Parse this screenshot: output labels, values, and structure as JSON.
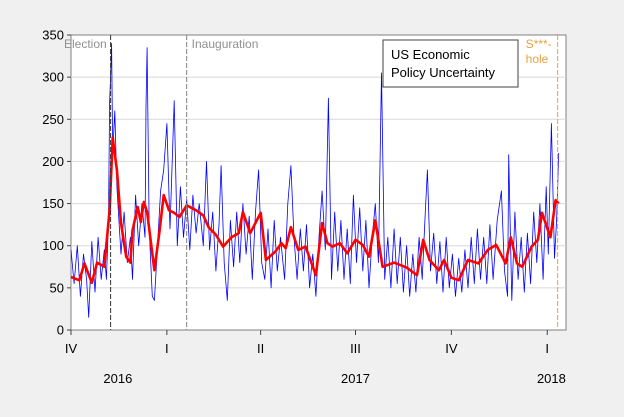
{
  "chart_data": {
    "type": "line",
    "title": "",
    "legend_text": [
      "US Economic",
      "Policy Uncertainty"
    ],
    "legend_placement": "top-right",
    "xlabel": "",
    "ylabel": "",
    "ylim": [
      0,
      350
    ],
    "yticks": [
      0,
      50,
      100,
      150,
      200,
      250,
      300,
      350
    ],
    "grid": true,
    "xlim": [
      "2016-10-01",
      "2018-01-19"
    ],
    "quarter_ticks": [
      {
        "date": "2016-10-01",
        "label": "IV"
      },
      {
        "date": "2017-01-01",
        "label": "I"
      },
      {
        "date": "2017-04-01",
        "label": "II"
      },
      {
        "date": "2017-07-01",
        "label": "III"
      },
      {
        "date": "2017-10-01",
        "label": "IV"
      },
      {
        "date": "2018-01-01",
        "label": "I"
      }
    ],
    "year_labels": [
      {
        "date": "2016-11-15",
        "label": "2016"
      },
      {
        "date": "2017-07-01",
        "label": "2017"
      },
      {
        "date": "2018-01-05",
        "label": "2018"
      }
    ],
    "annotations": [
      {
        "date": "2016-11-08",
        "label": "Election",
        "color": "#333333"
      },
      {
        "date": "2017-01-20",
        "label": "Inauguration",
        "color": "#808080"
      },
      {
        "date": "2018-01-11",
        "label": "S***-",
        "label2": "hole",
        "color": "#e8a040"
      }
    ],
    "colors": {
      "daily": "#0000ff",
      "moving_average": "#ff0000",
      "grid": "#d8d8d8",
      "annotation_text": "#909090"
    },
    "series": [
      {
        "key": "daily",
        "points": [
          [
            "2016-10-01",
            95
          ],
          [
            "2016-10-04",
            55
          ],
          [
            "2016-10-07",
            100
          ],
          [
            "2016-10-10",
            40
          ],
          [
            "2016-10-13",
            90
          ],
          [
            "2016-10-16",
            60
          ],
          [
            "2016-10-18",
            15
          ],
          [
            "2016-10-21",
            105
          ],
          [
            "2016-10-24",
            45
          ],
          [
            "2016-10-27",
            110
          ],
          [
            "2016-10-30",
            60
          ],
          [
            "2016-11-02",
            95
          ],
          [
            "2016-11-04",
            60
          ],
          [
            "2016-11-06",
            130
          ],
          [
            "2016-11-07",
            270
          ],
          [
            "2016-11-08",
            300
          ],
          [
            "2016-11-09",
            340
          ],
          [
            "2016-11-10",
            210
          ],
          [
            "2016-11-12",
            260
          ],
          [
            "2016-11-14",
            170
          ],
          [
            "2016-11-16",
            130
          ],
          [
            "2016-11-18",
            90
          ],
          [
            "2016-11-21",
            140
          ],
          [
            "2016-11-24",
            80
          ],
          [
            "2016-11-27",
            110
          ],
          [
            "2016-11-29",
            60
          ],
          [
            "2016-12-02",
            160
          ],
          [
            "2016-12-05",
            100
          ],
          [
            "2016-12-08",
            150
          ],
          [
            "2016-12-11",
            110
          ],
          [
            "2016-12-12",
            265
          ],
          [
            "2016-12-13",
            335
          ],
          [
            "2016-12-15",
            120
          ],
          [
            "2016-12-18",
            40
          ],
          [
            "2016-12-20",
            35
          ],
          [
            "2016-12-23",
            100
          ],
          [
            "2016-12-26",
            165
          ],
          [
            "2016-12-29",
            190
          ],
          [
            "2017-01-01",
            245
          ],
          [
            "2017-01-04",
            120
          ],
          [
            "2017-01-08",
            272
          ],
          [
            "2017-01-11",
            100
          ],
          [
            "2017-01-14",
            170
          ],
          [
            "2017-01-17",
            110
          ],
          [
            "2017-01-20",
            155
          ],
          [
            "2017-01-23",
            95
          ],
          [
            "2017-01-26",
            160
          ],
          [
            "2017-01-29",
            115
          ],
          [
            "2017-02-01",
            150
          ],
          [
            "2017-02-05",
            100
          ],
          [
            "2017-02-08",
            200
          ],
          [
            "2017-02-11",
            95
          ],
          [
            "2017-02-14",
            140
          ],
          [
            "2017-02-17",
            70
          ],
          [
            "2017-02-20",
            125
          ],
          [
            "2017-02-22",
            195
          ],
          [
            "2017-02-25",
            80
          ],
          [
            "2017-02-28",
            35
          ],
          [
            "2017-03-03",
            130
          ],
          [
            "2017-03-06",
            75
          ],
          [
            "2017-03-09",
            140
          ],
          [
            "2017-03-12",
            80
          ],
          [
            "2017-03-15",
            150
          ],
          [
            "2017-03-18",
            90
          ],
          [
            "2017-03-21",
            135
          ],
          [
            "2017-03-24",
            60
          ],
          [
            "2017-03-27",
            140
          ],
          [
            "2017-03-30",
            190
          ],
          [
            "2017-04-02",
            80
          ],
          [
            "2017-04-05",
            60
          ],
          [
            "2017-04-08",
            120
          ],
          [
            "2017-04-11",
            50
          ],
          [
            "2017-04-14",
            130
          ],
          [
            "2017-04-17",
            70
          ],
          [
            "2017-04-20",
            110
          ],
          [
            "2017-04-24",
            60
          ],
          [
            "2017-04-27",
            150
          ],
          [
            "2017-04-30",
            195
          ],
          [
            "2017-05-03",
            110
          ],
          [
            "2017-05-06",
            60
          ],
          [
            "2017-05-09",
            120
          ],
          [
            "2017-05-12",
            70
          ],
          [
            "2017-05-15",
            125
          ],
          [
            "2017-05-18",
            50
          ],
          [
            "2017-05-21",
            90
          ],
          [
            "2017-05-24",
            40
          ],
          [
            "2017-05-27",
            110
          ],
          [
            "2017-05-30",
            165
          ],
          [
            "2017-06-02",
            95
          ],
          [
            "2017-06-05",
            275
          ],
          [
            "2017-06-08",
            60
          ],
          [
            "2017-06-11",
            140
          ],
          [
            "2017-06-14",
            70
          ],
          [
            "2017-06-17",
            130
          ],
          [
            "2017-06-20",
            60
          ],
          [
            "2017-06-23",
            120
          ],
          [
            "2017-06-26",
            55
          ],
          [
            "2017-06-29",
            160
          ],
          [
            "2017-07-02",
            80
          ],
          [
            "2017-07-05",
            145
          ],
          [
            "2017-07-08",
            70
          ],
          [
            "2017-07-11",
            130
          ],
          [
            "2017-07-14",
            50
          ],
          [
            "2017-07-17",
            110
          ],
          [
            "2017-07-20",
            150
          ],
          [
            "2017-07-23",
            80
          ],
          [
            "2017-07-26",
            305
          ],
          [
            "2017-07-29",
            60
          ],
          [
            "2017-08-01",
            110
          ],
          [
            "2017-08-04",
            50
          ],
          [
            "2017-08-07",
            120
          ],
          [
            "2017-08-10",
            55
          ],
          [
            "2017-08-13",
            110
          ],
          [
            "2017-08-16",
            45
          ],
          [
            "2017-08-19",
            100
          ],
          [
            "2017-08-22",
            40
          ],
          [
            "2017-08-25",
            90
          ],
          [
            "2017-08-28",
            45
          ],
          [
            "2017-08-31",
            110
          ],
          [
            "2017-09-03",
            60
          ],
          [
            "2017-09-06",
            140
          ],
          [
            "2017-09-08",
            190
          ],
          [
            "2017-09-11",
            70
          ],
          [
            "2017-09-14",
            115
          ],
          [
            "2017-09-17",
            55
          ],
          [
            "2017-09-20",
            105
          ],
          [
            "2017-09-23",
            45
          ],
          [
            "2017-09-26",
            110
          ],
          [
            "2017-09-29",
            50
          ],
          [
            "2017-10-02",
            90
          ],
          [
            "2017-10-05",
            40
          ],
          [
            "2017-10-08",
            85
          ],
          [
            "2017-10-11",
            45
          ],
          [
            "2017-10-14",
            95
          ],
          [
            "2017-10-17",
            50
          ],
          [
            "2017-10-20",
            110
          ],
          [
            "2017-10-23",
            55
          ],
          [
            "2017-10-26",
            120
          ],
          [
            "2017-10-29",
            60
          ],
          [
            "2017-11-01",
            110
          ],
          [
            "2017-11-04",
            55
          ],
          [
            "2017-11-07",
            125
          ],
          [
            "2017-11-10",
            60
          ],
          [
            "2017-11-14",
            130
          ],
          [
            "2017-11-18",
            165
          ],
          [
            "2017-11-21",
            70
          ],
          [
            "2017-11-24",
            40
          ],
          [
            "2017-11-25",
            208
          ],
          [
            "2017-11-28",
            35
          ],
          [
            "2017-12-01",
            140
          ],
          [
            "2017-12-04",
            60
          ],
          [
            "2017-12-07",
            110
          ],
          [
            "2017-12-10",
            45
          ],
          [
            "2017-12-13",
            115
          ],
          [
            "2017-12-16",
            55
          ],
          [
            "2017-12-19",
            140
          ],
          [
            "2017-12-22",
            80
          ],
          [
            "2017-12-25",
            150
          ],
          [
            "2017-12-28",
            60
          ],
          [
            "2017-12-31",
            170
          ],
          [
            "2018-01-02",
            90
          ],
          [
            "2018-01-05",
            245
          ],
          [
            "2018-01-08",
            85
          ],
          [
            "2018-01-10",
            130
          ],
          [
            "2018-01-12",
            210
          ]
        ]
      },
      {
        "key": "moving_average",
        "points": [
          [
            "2016-10-01",
            63
          ],
          [
            "2016-10-09",
            59
          ],
          [
            "2016-10-14",
            79
          ],
          [
            "2016-10-21",
            56
          ],
          [
            "2016-10-26",
            80
          ],
          [
            "2016-11-02",
            75
          ],
          [
            "2016-11-07",
            142
          ],
          [
            "2016-11-10",
            228
          ],
          [
            "2016-11-14",
            190
          ],
          [
            "2016-11-18",
            127
          ],
          [
            "2016-11-23",
            87
          ],
          [
            "2016-11-27",
            80
          ],
          [
            "2016-11-29",
            118
          ],
          [
            "2016-12-04",
            146
          ],
          [
            "2016-12-07",
            128
          ],
          [
            "2016-12-10",
            152
          ],
          [
            "2016-12-13",
            140
          ],
          [
            "2016-12-20",
            71
          ],
          [
            "2016-12-25",
            118
          ],
          [
            "2016-12-29",
            160
          ],
          [
            "2017-01-03",
            142
          ],
          [
            "2017-01-08",
            139
          ],
          [
            "2017-01-13",
            134
          ],
          [
            "2017-01-20",
            148
          ],
          [
            "2017-01-29",
            142
          ],
          [
            "2017-02-05",
            136
          ],
          [
            "2017-02-10",
            122
          ],
          [
            "2017-02-17",
            113
          ],
          [
            "2017-02-24",
            99
          ],
          [
            "2017-03-04",
            110
          ],
          [
            "2017-03-11",
            115
          ],
          [
            "2017-03-15",
            140
          ],
          [
            "2017-03-22",
            115
          ],
          [
            "2017-04-01",
            139
          ],
          [
            "2017-04-06",
            83
          ],
          [
            "2017-04-15",
            93
          ],
          [
            "2017-04-21",
            103
          ],
          [
            "2017-04-25",
            97
          ],
          [
            "2017-04-30",
            122
          ],
          [
            "2017-05-07",
            95
          ],
          [
            "2017-05-14",
            99
          ],
          [
            "2017-05-24",
            65
          ],
          [
            "2017-05-30",
            127
          ],
          [
            "2017-06-04",
            103
          ],
          [
            "2017-06-09",
            99
          ],
          [
            "2017-06-16",
            103
          ],
          [
            "2017-06-23",
            91
          ],
          [
            "2017-07-01",
            107
          ],
          [
            "2017-07-08",
            101
          ],
          [
            "2017-07-14",
            87
          ],
          [
            "2017-07-20",
            130
          ],
          [
            "2017-07-27",
            75
          ],
          [
            "2017-08-07",
            80
          ],
          [
            "2017-08-19",
            74
          ],
          [
            "2017-08-29",
            65
          ],
          [
            "2017-09-04",
            107
          ],
          [
            "2017-09-10",
            83
          ],
          [
            "2017-09-19",
            71
          ],
          [
            "2017-09-24",
            83
          ],
          [
            "2017-10-01",
            62
          ],
          [
            "2017-10-08",
            59
          ],
          [
            "2017-10-17",
            83
          ],
          [
            "2017-10-27",
            79
          ],
          [
            "2017-11-05",
            95
          ],
          [
            "2017-11-13",
            101
          ],
          [
            "2017-11-22",
            79
          ],
          [
            "2017-11-27",
            110
          ],
          [
            "2017-12-03",
            79
          ],
          [
            "2017-12-08",
            75
          ],
          [
            "2017-12-17",
            99
          ],
          [
            "2017-12-23",
            107
          ],
          [
            "2017-12-27",
            139
          ],
          [
            "2018-01-04",
            110
          ],
          [
            "2018-01-09",
            154
          ],
          [
            "2018-01-12",
            150
          ]
        ]
      }
    ]
  }
}
